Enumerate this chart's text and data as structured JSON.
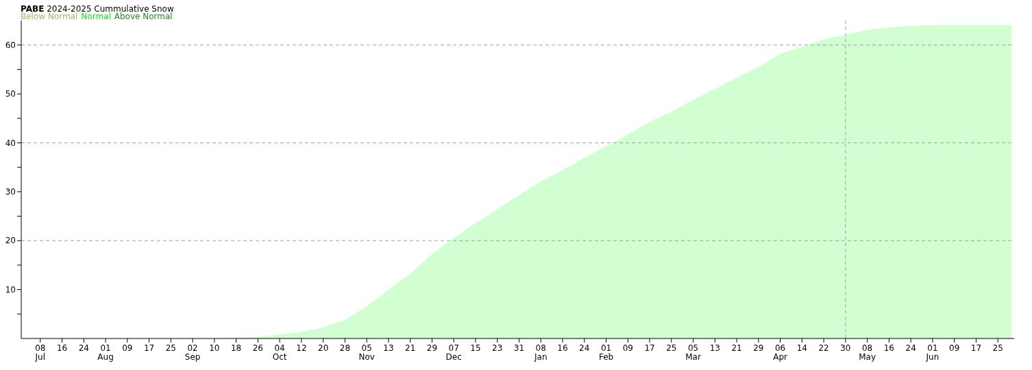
{
  "chart_data": {
    "type": "area",
    "title": "PABE  2024-2025 Cummulative Snow",
    "legend": "top left",
    "x": [
      "2024-07-01",
      "2024-09-10",
      "2024-09-18",
      "2024-09-26",
      "2024-10-04",
      "2024-10-12",
      "2024-10-20",
      "2024-10-28",
      "2024-11-05",
      "2024-11-13",
      "2024-11-21",
      "2024-11-29",
      "2024-12-07",
      "2024-12-15",
      "2024-12-23",
      "2024-12-31",
      "2025-01-08",
      "2025-01-16",
      "2025-01-24",
      "2025-02-01",
      "2025-02-09",
      "2025-02-17",
      "2025-02-25",
      "2025-03-05",
      "2025-03-13",
      "2025-03-21",
      "2025-03-29",
      "2025-04-06",
      "2025-04-14",
      "2025-04-22",
      "2025-04-30",
      "2025-05-08",
      "2025-05-16",
      "2025-05-24",
      "2025-06-01",
      "2025-06-30"
    ],
    "series": [
      {
        "name": "Below Normal",
        "color": "#b0b060",
        "values": [
          null,
          null,
          null,
          null,
          null,
          null,
          null,
          null,
          null,
          null,
          null,
          null,
          null,
          null,
          null,
          null,
          null,
          null,
          null,
          null,
          null,
          null,
          null,
          null,
          null,
          null,
          null,
          null,
          null,
          null,
          null,
          null,
          null,
          null,
          null,
          null
        ]
      },
      {
        "name": "Normal",
        "color": "#00ff00",
        "values": [
          0,
          0,
          0.1,
          0.3,
          0.8,
          1.4,
          2.2,
          3.8,
          6.5,
          10.0,
          13.2,
          17.3,
          20.5,
          23.6,
          26.4,
          29.3,
          32.1,
          34.4,
          37.0,
          39.3,
          41.7,
          44.3,
          46.3,
          48.8,
          51.0,
          53.3,
          55.5,
          58.2,
          59.6,
          61.2,
          62.1,
          63.1,
          63.6,
          63.9,
          64.1,
          64.1
        ]
      },
      {
        "name": "Above Normal",
        "color": "#1e8c1e",
        "values": [
          null,
          null,
          null,
          null,
          null,
          null,
          null,
          null,
          null,
          null,
          null,
          null,
          null,
          null,
          null,
          null,
          null,
          null,
          null,
          null,
          null,
          null,
          null,
          null,
          null,
          null,
          null,
          null,
          null,
          null,
          null,
          null,
          null,
          null,
          null,
          null
        ]
      }
    ],
    "xlim": [
      "2024-07-01",
      "2025-07-01"
    ],
    "xticks": [
      {
        "value": "2024-07-08",
        "label": "08\nJul"
      },
      {
        "value": "2024-07-16",
        "label": "16"
      },
      {
        "value": "2024-07-24",
        "label": "24"
      },
      {
        "value": "2024-08-01",
        "label": "01\nAug"
      },
      {
        "value": "2024-08-09",
        "label": "09"
      },
      {
        "value": "2024-08-17",
        "label": "17"
      },
      {
        "value": "2024-08-25",
        "label": "25"
      },
      {
        "value": "2024-09-02",
        "label": "02\nSep"
      },
      {
        "value": "2024-09-10",
        "label": "10"
      },
      {
        "value": "2024-09-18",
        "label": "18"
      },
      {
        "value": "2024-09-26",
        "label": "26"
      },
      {
        "value": "2024-10-04",
        "label": "04\nOct"
      },
      {
        "value": "2024-10-12",
        "label": "12"
      },
      {
        "value": "2024-10-20",
        "label": "20"
      },
      {
        "value": "2024-10-28",
        "label": "28"
      },
      {
        "value": "2024-11-05",
        "label": "05\nNov"
      },
      {
        "value": "2024-11-13",
        "label": "13"
      },
      {
        "value": "2024-11-21",
        "label": "21"
      },
      {
        "value": "2024-11-29",
        "label": "29"
      },
      {
        "value": "2024-12-07",
        "label": "07\nDec"
      },
      {
        "value": "2024-12-15",
        "label": "15"
      },
      {
        "value": "2024-12-23",
        "label": "23"
      },
      {
        "value": "2024-12-31",
        "label": "31"
      },
      {
        "value": "2025-01-08",
        "label": "08\nJan"
      },
      {
        "value": "2025-01-16",
        "label": "16"
      },
      {
        "value": "2025-01-24",
        "label": "24"
      },
      {
        "value": "2025-02-01",
        "label": "01\nFeb"
      },
      {
        "value": "2025-02-09",
        "label": "09"
      },
      {
        "value": "2025-02-17",
        "label": "17"
      },
      {
        "value": "2025-02-25",
        "label": "25"
      },
      {
        "value": "2025-03-05",
        "label": "05\nMar"
      },
      {
        "value": "2025-03-13",
        "label": "13"
      },
      {
        "value": "2025-03-21",
        "label": "21"
      },
      {
        "value": "2025-03-29",
        "label": "29"
      },
      {
        "value": "2025-04-06",
        "label": "06\nApr"
      },
      {
        "value": "2025-04-14",
        "label": "14"
      },
      {
        "value": "2025-04-22",
        "label": "22"
      },
      {
        "value": "2025-04-30",
        "label": "30"
      },
      {
        "value": "2025-05-08",
        "label": "08\nMay"
      },
      {
        "value": "2025-05-16",
        "label": "16"
      },
      {
        "value": "2025-05-24",
        "label": "24"
      },
      {
        "value": "2025-06-01",
        "label": "01\nJun"
      },
      {
        "value": "2025-06-09",
        "label": "09"
      },
      {
        "value": "2025-06-17",
        "label": "17"
      },
      {
        "value": "2025-06-25",
        "label": "25"
      }
    ],
    "ylim": [
      0,
      65
    ],
    "yticks": [
      {
        "value": 5,
        "label": null
      },
      10,
      {
        "value": 15,
        "label": null
      },
      20,
      {
        "value": 25,
        "label": null
      },
      30,
      {
        "value": 35,
        "label": null
      },
      40,
      {
        "value": 45,
        "label": null
      },
      50,
      {
        "value": 55,
        "label": null
      },
      60
    ],
    "ref_lines": [
      {
        "axis": "y",
        "value": 20,
        "color": "#a0a0a0",
        "line_style": "dashed"
      },
      {
        "axis": "y",
        "value": 40,
        "color": "#a0a0a0",
        "line_style": "dashed"
      },
      {
        "axis": "y",
        "value": 60,
        "color": "#a0a0a0",
        "line_style": "dashed"
      },
      {
        "axis": "x",
        "value": "2025-04-30",
        "color": "#a0a0a0",
        "line_style": "dashed"
      }
    ]
  }
}
